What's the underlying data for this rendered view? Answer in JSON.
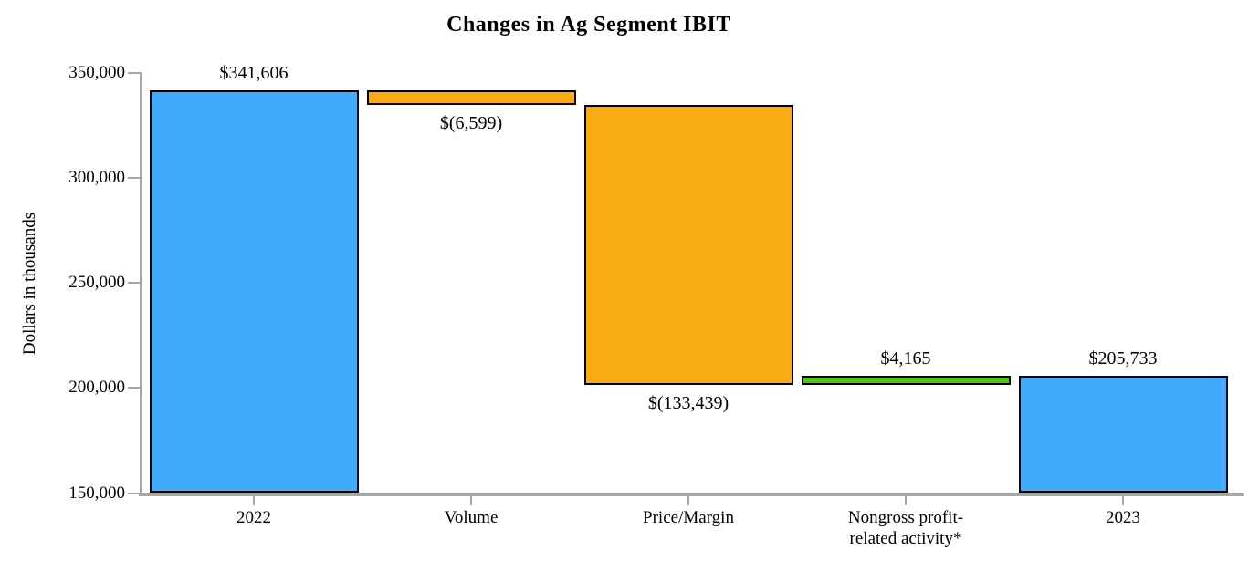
{
  "chart_data": {
    "type": "waterfall",
    "title": "Changes in Ag Segment IBIT",
    "ylabel": "Dollars in thousands",
    "ylim": [
      150000,
      350000
    ],
    "grid": false,
    "legend": false,
    "yticks": [
      {
        "value": 350000,
        "label": "350,000"
      },
      {
        "value": 300000,
        "label": "300,000"
      },
      {
        "value": 250000,
        "label": "250,000"
      },
      {
        "value": 200000,
        "label": "200,000"
      },
      {
        "value": 150000,
        "label": "150,000"
      }
    ],
    "categories": [
      [
        "2022"
      ],
      [
        "Volume"
      ],
      [
        "Price/Margin"
      ],
      [
        "Nongross profit-",
        "related activity*"
      ],
      [
        "2023"
      ]
    ],
    "bars": [
      {
        "category": "2022",
        "kind": "total",
        "value": 341606,
        "start": 150000,
        "end": 341606,
        "label": "$341,606",
        "label_position": "above",
        "color": "#41aafb"
      },
      {
        "category": "Volume",
        "kind": "decrease",
        "value": -6599,
        "start": 341606,
        "end": 335007,
        "label": "$(6,599)",
        "label_position": "below",
        "color": "#f8ab13"
      },
      {
        "category": "Price/Margin",
        "kind": "decrease",
        "value": -133439,
        "start": 335007,
        "end": 201568,
        "label": "$(133,439)",
        "label_position": "below",
        "color": "#f8ab13"
      },
      {
        "category": "Nongross profit-related activity*",
        "kind": "increase",
        "value": 4165,
        "start": 201568,
        "end": 205733,
        "label": "$4,165",
        "label_position": "above",
        "color": "#54c314"
      },
      {
        "category": "2023",
        "kind": "total",
        "value": 205733,
        "start": 150000,
        "end": 205733,
        "label": "$205,733",
        "label_position": "above",
        "color": "#41aafb"
      }
    ],
    "colors": {
      "total": "#41aafb",
      "change_negative": "#f8ab13",
      "change_positive": "#54c314",
      "axis": "#a6a6a6",
      "bar_border": "#000000",
      "text": "#000000"
    }
  }
}
